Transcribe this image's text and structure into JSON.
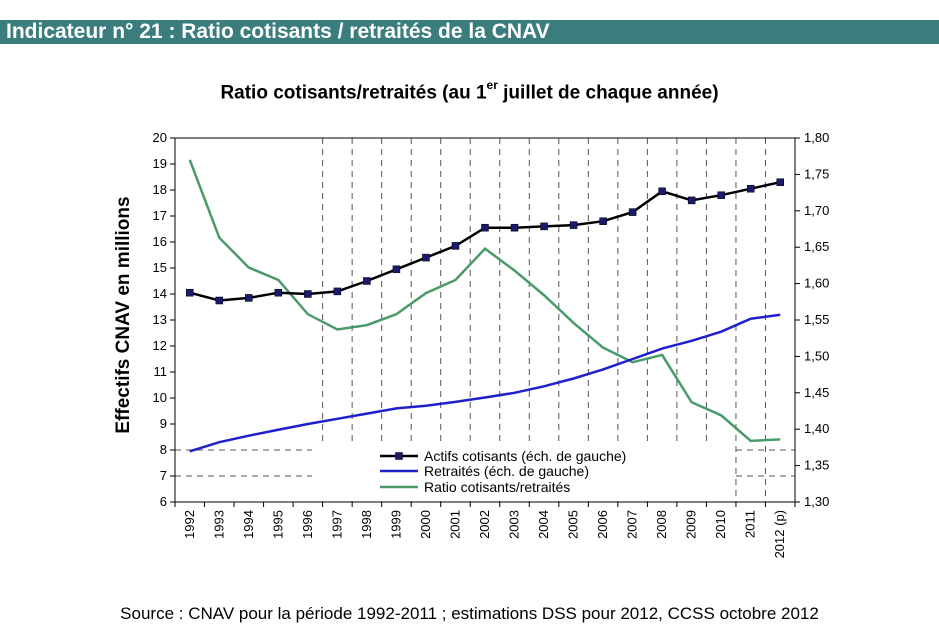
{
  "header": {
    "title": "Indicateur n° 21 : Ratio cotisants / retraités de la CNAV"
  },
  "title": {
    "main": "Ratio cotisants/retraités (au 1",
    "sup": "er",
    "rest": " juillet de chaque année)"
  },
  "source": "Source : CNAV pour la période 1992-2011 ; estimations DSS pour 2012, CCSS octobre 2012",
  "chart_data": {
    "type": "line",
    "title": "Ratio cotisants/retraités (au 1er juillet de chaque année)",
    "ylabel": "Effectifs CNAV en millions",
    "xlabel": "",
    "categories": [
      "1992",
      "1993",
      "1994",
      "1995",
      "1996",
      "1997",
      "1998",
      "1999",
      "2000",
      "2001",
      "2002",
      "2003",
      "2004",
      "2005",
      "2006",
      "2007",
      "2008",
      "2009",
      "2010",
      "2011",
      "2012 (p)"
    ],
    "ylim": [
      6,
      20
    ],
    "y_ticks": [
      "6",
      "7",
      "8",
      "9",
      "10",
      "11",
      "12",
      "13",
      "14",
      "15",
      "16",
      "17",
      "18",
      "19",
      "20"
    ],
    "y2lim": [
      1.3,
      1.8
    ],
    "y2_ticks": [
      "1,30",
      "1,35",
      "1,40",
      "1,45",
      "1,50",
      "1,55",
      "1,60",
      "1,65",
      "1,70",
      "1,75",
      "1,80"
    ],
    "series": [
      {
        "name": "Actifs cotisants (éch. de gauche)",
        "axis": "left",
        "color": "#000000",
        "marker_color": "#1a1a6e",
        "values": [
          14.05,
          13.75,
          13.85,
          14.05,
          14.0,
          14.1,
          14.5,
          14.95,
          15.4,
          15.85,
          16.55,
          16.55,
          16.6,
          16.65,
          16.8,
          17.15,
          17.95,
          17.6,
          17.8,
          18.05,
          18.3
        ]
      },
      {
        "name": "Retraités (éch. de gauche)",
        "axis": "left",
        "color": "#1f1fcc",
        "values": [
          7.95,
          8.3,
          8.55,
          8.78,
          9.0,
          9.2,
          9.4,
          9.6,
          9.7,
          9.85,
          10.02,
          10.2,
          10.45,
          10.75,
          11.1,
          11.5,
          11.9,
          12.2,
          12.55,
          13.05,
          13.2
        ]
      },
      {
        "name": "Ratio cotisants/retraités",
        "axis": "right",
        "color": "#4a9a6a",
        "values": [
          1.77,
          1.663,
          1.622,
          1.605,
          1.558,
          1.537,
          1.543,
          1.558,
          1.587,
          1.605,
          1.648,
          1.618,
          1.584,
          1.546,
          1.512,
          1.492,
          1.502,
          1.437,
          1.419,
          1.384,
          1.386
        ]
      }
    ]
  }
}
